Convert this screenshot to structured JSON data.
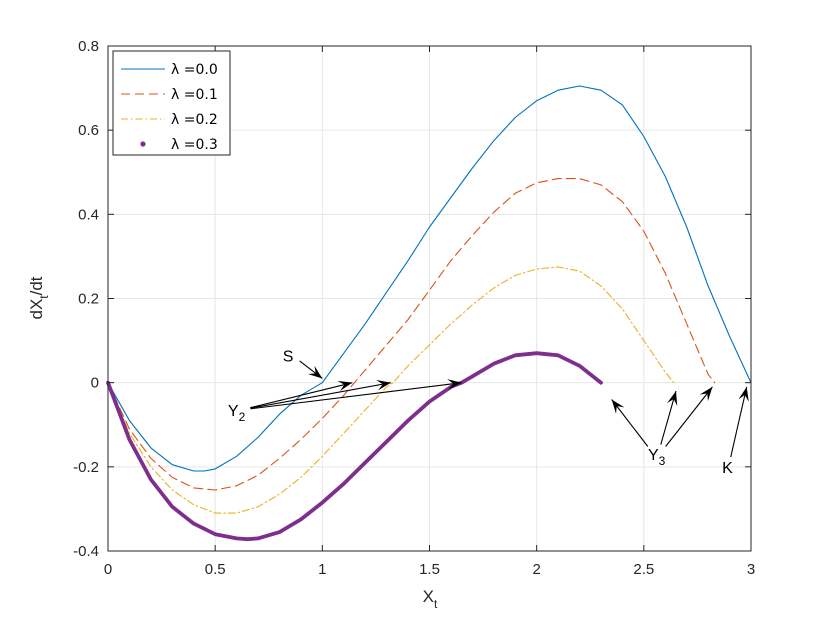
{
  "chart_data": {
    "type": "line",
    "title": "",
    "xlabel": {
      "main": "X",
      "sub": "t"
    },
    "ylabel": {
      "pre": "dX",
      "sub": "t",
      "post": "/dt"
    },
    "xlim": [
      0,
      3
    ],
    "ylim": [
      -0.4,
      0.8
    ],
    "xticks": [
      0,
      0.5,
      1,
      1.5,
      2,
      2.5,
      3
    ],
    "yticks": [
      -0.4,
      -0.2,
      0,
      0.2,
      0.4,
      0.6,
      0.8
    ],
    "xtick_labels": [
      "0",
      "0.5",
      "1",
      "1.5",
      "2",
      "2.5",
      "3"
    ],
    "ytick_labels": [
      "-0.4",
      "-0.2",
      "0",
      "0.2",
      "0.4",
      "0.6",
      "0.8"
    ],
    "grid": true,
    "legend_position": "top-left",
    "series": [
      {
        "name": "λ =0.0",
        "color": "#0072BD",
        "style": "solid",
        "x": [
          0,
          0.1,
          0.2,
          0.3,
          0.4,
          0.45,
          0.5,
          0.6,
          0.7,
          0.8,
          0.9,
          1.0,
          1.1,
          1.2,
          1.3,
          1.4,
          1.5,
          1.6,
          1.7,
          1.8,
          1.9,
          2.0,
          2.1,
          2.2,
          2.3,
          2.4,
          2.5,
          2.6,
          2.7,
          2.8,
          2.9,
          3.0
        ],
        "y": [
          0,
          -0.09,
          -0.155,
          -0.195,
          -0.21,
          -0.21,
          -0.205,
          -0.175,
          -0.13,
          -0.075,
          -0.03,
          0.0,
          0.07,
          0.14,
          0.215,
          0.29,
          0.37,
          0.44,
          0.51,
          0.575,
          0.63,
          0.67,
          0.695,
          0.705,
          0.695,
          0.66,
          0.585,
          0.49,
          0.37,
          0.23,
          0.11,
          0.0
        ]
      },
      {
        "name": "λ =0.1",
        "color": "#D95319",
        "style": "dashed",
        "x": [
          0,
          0.1,
          0.2,
          0.3,
          0.4,
          0.5,
          0.6,
          0.7,
          0.8,
          0.9,
          1.0,
          1.1,
          1.15,
          1.2,
          1.3,
          1.4,
          1.5,
          1.6,
          1.7,
          1.8,
          1.9,
          2.0,
          2.1,
          2.2,
          2.3,
          2.4,
          2.5,
          2.6,
          2.7,
          2.8,
          2.83
        ],
        "y": [
          0,
          -0.11,
          -0.18,
          -0.225,
          -0.25,
          -0.255,
          -0.245,
          -0.22,
          -0.18,
          -0.135,
          -0.085,
          -0.03,
          0.0,
          0.03,
          0.09,
          0.15,
          0.22,
          0.29,
          0.35,
          0.405,
          0.45,
          0.475,
          0.485,
          0.485,
          0.47,
          0.43,
          0.36,
          0.26,
          0.14,
          0.02,
          0.0
        ]
      },
      {
        "name": "λ =0.2",
        "color": "#EDB120",
        "style": "dashdot",
        "x": [
          0,
          0.1,
          0.2,
          0.3,
          0.4,
          0.5,
          0.6,
          0.7,
          0.8,
          0.9,
          1.0,
          1.1,
          1.2,
          1.3,
          1.33,
          1.4,
          1.5,
          1.6,
          1.7,
          1.8,
          1.9,
          2.0,
          2.1,
          2.2,
          2.3,
          2.4,
          2.5,
          2.6,
          2.64
        ],
        "y": [
          0,
          -0.12,
          -0.2,
          -0.255,
          -0.29,
          -0.31,
          -0.31,
          -0.295,
          -0.265,
          -0.225,
          -0.175,
          -0.12,
          -0.065,
          -0.01,
          0.0,
          0.04,
          0.09,
          0.14,
          0.185,
          0.225,
          0.255,
          0.27,
          0.275,
          0.265,
          0.23,
          0.175,
          0.1,
          0.025,
          0.0
        ]
      },
      {
        "name": "λ =0.3",
        "color": "#7E2F8E",
        "style": "bold",
        "x": [
          0,
          0.1,
          0.2,
          0.3,
          0.4,
          0.5,
          0.6,
          0.65,
          0.7,
          0.8,
          0.9,
          1.0,
          1.1,
          1.2,
          1.3,
          1.4,
          1.5,
          1.6,
          1.65,
          1.7,
          1.8,
          1.9,
          2.0,
          2.1,
          2.2,
          2.3
        ],
        "y": [
          0,
          -0.135,
          -0.23,
          -0.295,
          -0.335,
          -0.36,
          -0.37,
          -0.372,
          -0.37,
          -0.355,
          -0.325,
          -0.285,
          -0.24,
          -0.19,
          -0.14,
          -0.09,
          -0.045,
          -0.01,
          0.0,
          0.015,
          0.045,
          0.065,
          0.07,
          0.065,
          0.04,
          0.0
        ]
      }
    ],
    "annotations": [
      {
        "text": "S",
        "sub": "",
        "label_at": [
          0.84,
          0.065
        ],
        "arrows_to": [
          [
            1.0,
            0.01
          ]
        ]
      },
      {
        "text": "Y",
        "sub": "2",
        "label_at": [
          0.6,
          -0.065
        ],
        "arrows_to": [
          [
            1.14,
            0.0
          ],
          [
            1.32,
            0.0
          ],
          [
            1.65,
            0.0
          ]
        ]
      },
      {
        "text": "Y",
        "sub": "3",
        "label_at": [
          2.56,
          -0.17
        ],
        "arrows_to": [
          [
            2.35,
            -0.04
          ],
          [
            2.65,
            -0.02
          ],
          [
            2.82,
            -0.01
          ]
        ]
      },
      {
        "text": "K",
        "sub": "",
        "label_at": [
          2.89,
          -0.2
        ],
        "arrows_to": [
          [
            2.98,
            -0.01
          ]
        ]
      }
    ]
  }
}
